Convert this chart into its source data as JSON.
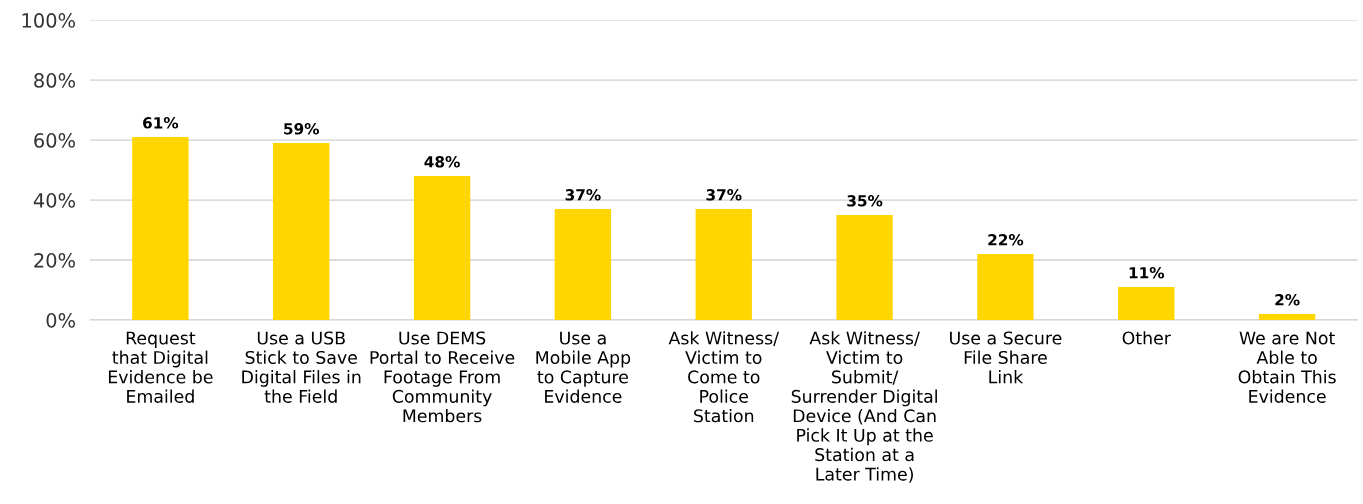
{
  "chart_data": {
    "type": "bar",
    "categories": [
      "Request\nthat Digital\nEvidence be\nEmailed",
      "Use a USB\nStick to Save\nDigital Files in\nthe Field",
      "Use DEMS\nPortal to Receive\nFootage From\nCommunity\nMembers",
      "Use a\nMobile App\nto Capture\nEvidence",
      "Ask Witness/\nVictim to\nCome to\nPolice\nStation",
      "Ask Witness/\nVictim to\nSubmit/\nSurrender Digital\nDevice (And Can\nPick It Up at the\nStation at a\nLater Time)",
      "Use a Secure\nFile Share\nLink",
      "Other",
      "We are Not\nAble to\nObtain This\nEvidence"
    ],
    "values": [
      61,
      59,
      48,
      37,
      37,
      35,
      22,
      11,
      2
    ],
    "value_labels": [
      "61%",
      "59%",
      "48%",
      "37%",
      "37%",
      "35%",
      "22%",
      "11%",
      "2%"
    ],
    "color": "#ffd600",
    "ylim": [
      0,
      100
    ],
    "yticks": [
      {
        "value": 0,
        "label": "0%"
      },
      {
        "value": 20,
        "label": "20%"
      },
      {
        "value": 40,
        "label": "40%"
      },
      {
        "value": 60,
        "label": "60%"
      },
      {
        "value": 80,
        "label": "80%"
      },
      {
        "value": 100,
        "label": "100%"
      }
    ],
    "grid": "y"
  }
}
